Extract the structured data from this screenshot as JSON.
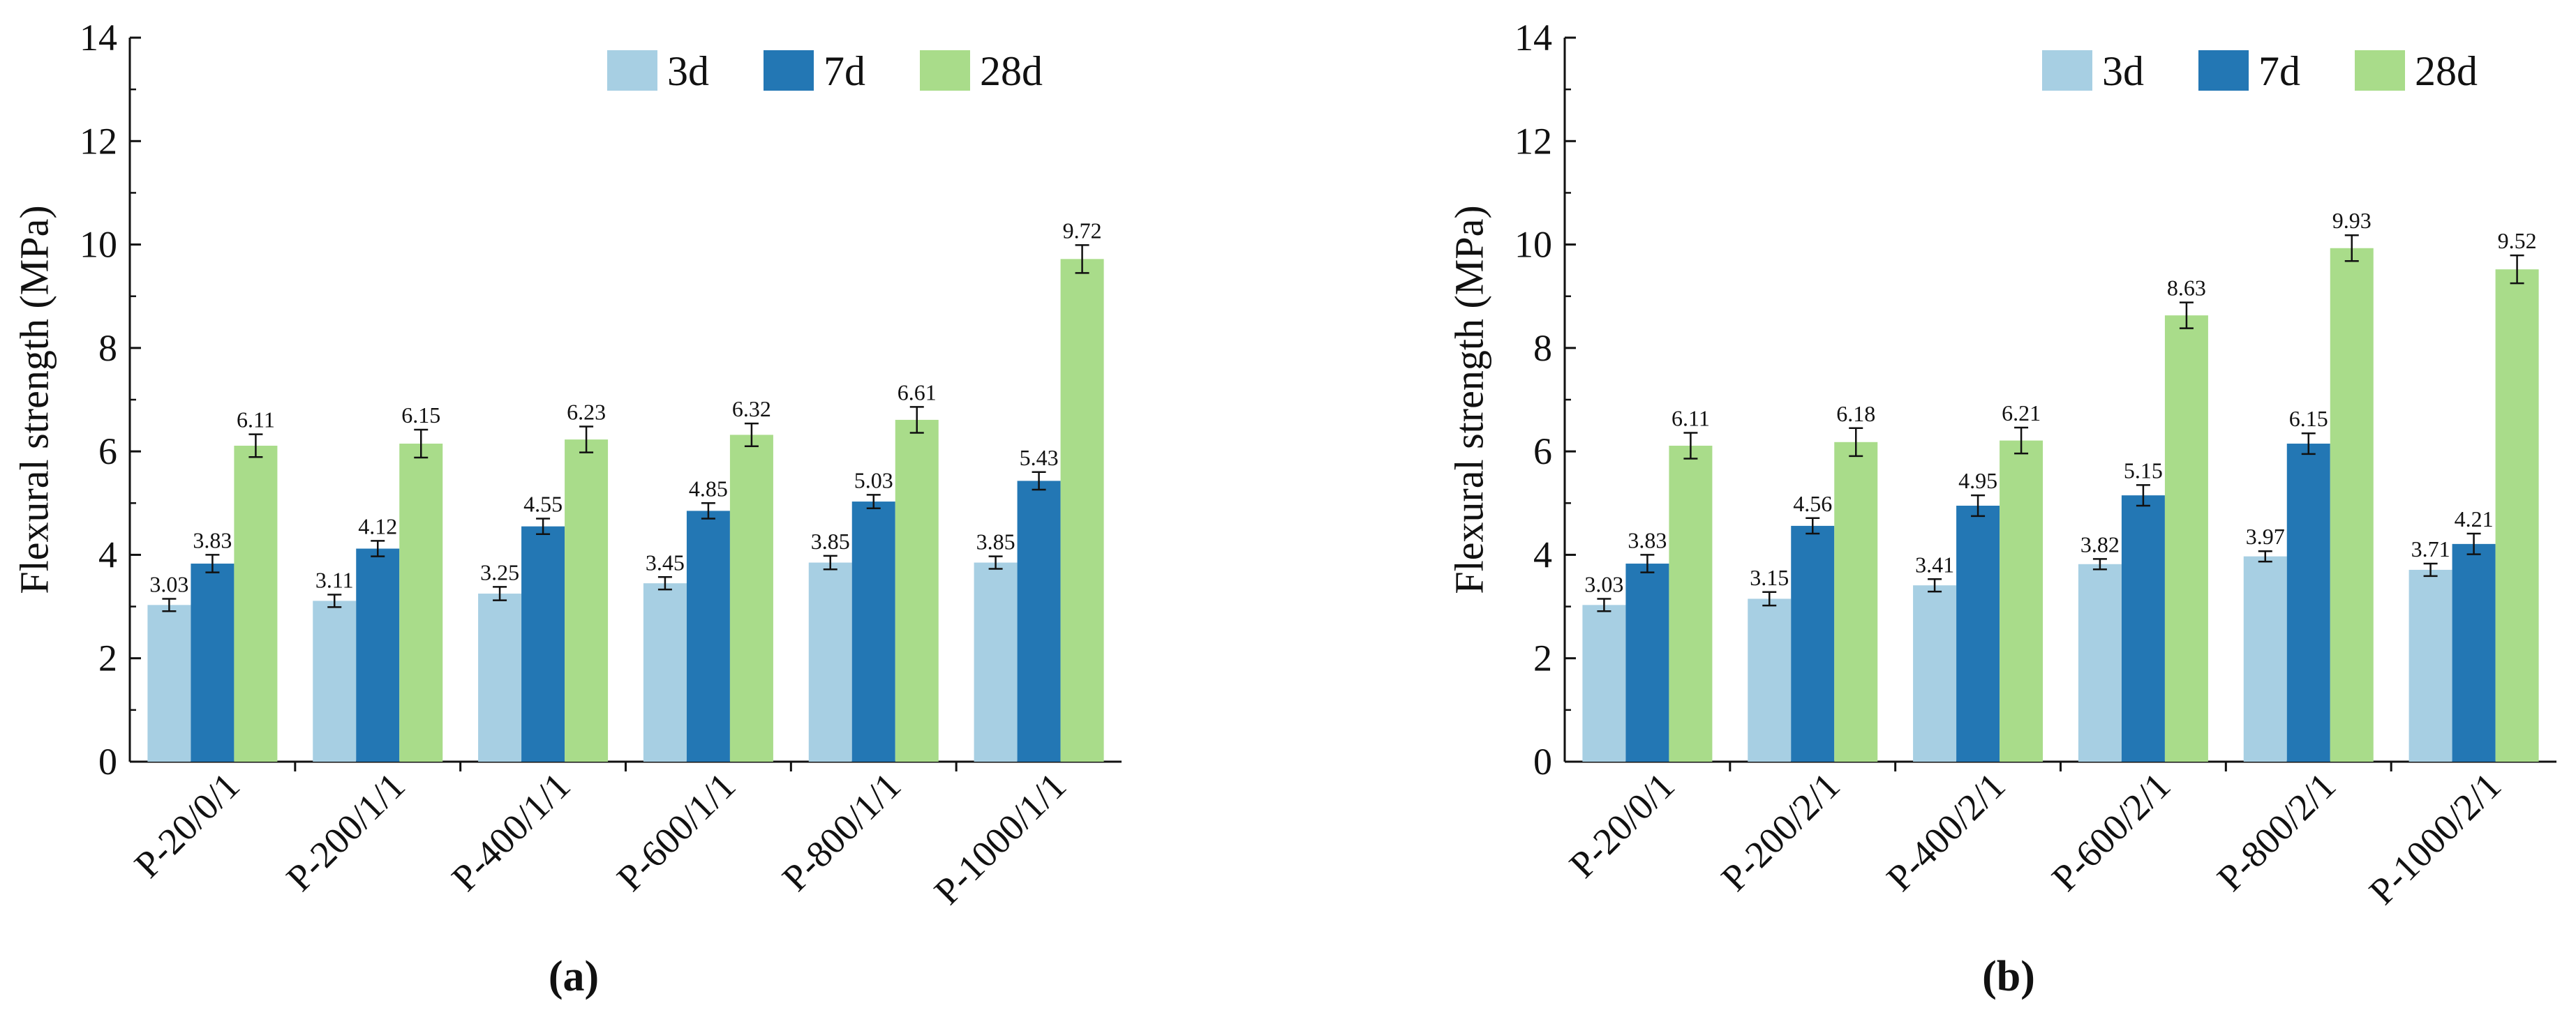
{
  "colors": {
    "3d": "#a7cfe3",
    "7d": "#2377b4",
    "28d": "#a9dc8a",
    "axis": "#111111"
  },
  "chart_data": [
    {
      "type": "bar",
      "panel_label": "(a)",
      "ylabel": "Flexural strength (MPa)",
      "xlabel": "",
      "ylim": [
        0,
        14
      ],
      "yticks": [
        0,
        2,
        4,
        6,
        8,
        10,
        12,
        14
      ],
      "legend": [
        "3d",
        "7d",
        "28d"
      ],
      "legend_position": "top-right",
      "categories": [
        "P-20/0/1",
        "P-200/1/1",
        "P-400/1/1",
        "P-600/1/1",
        "P-800/1/1",
        "P-1000/1/1"
      ],
      "series": [
        {
          "name": "3d",
          "values": [
            3.03,
            3.11,
            3.25,
            3.45,
            3.85,
            3.85
          ],
          "errors": [
            0.12,
            0.12,
            0.13,
            0.12,
            0.13,
            0.12
          ],
          "labels": [
            "3.03",
            "3.11",
            "3.25",
            "3.45",
            "3.85",
            "3.85"
          ]
        },
        {
          "name": "7d",
          "values": [
            3.83,
            4.12,
            4.55,
            4.85,
            5.03,
            5.43
          ],
          "errors": [
            0.17,
            0.15,
            0.15,
            0.15,
            0.13,
            0.17
          ],
          "labels": [
            "3.83",
            "4.12",
            "4.55",
            "4.85",
            "5.03",
            "5.43"
          ]
        },
        {
          "name": "28d",
          "values": [
            6.11,
            6.15,
            6.23,
            6.32,
            6.61,
            9.72
          ],
          "errors": [
            0.22,
            0.27,
            0.25,
            0.22,
            0.25,
            0.27
          ],
          "labels": [
            "6.11",
            "6.15",
            "6.23",
            "6.32",
            "6.61",
            "9.72"
          ]
        }
      ]
    },
    {
      "type": "bar",
      "panel_label": "(b)",
      "ylabel": "Flexural strength (MPa)",
      "xlabel": "",
      "ylim": [
        0,
        14
      ],
      "yticks": [
        0,
        2,
        4,
        6,
        8,
        10,
        12,
        14
      ],
      "legend": [
        "3d",
        "7d",
        "28d"
      ],
      "legend_position": "top-right",
      "categories": [
        "P-20/0/1",
        "P-200/2/1",
        "P-400/2/1",
        "P-600/2/1",
        "P-800/2/1",
        "P-1000/2/1"
      ],
      "series": [
        {
          "name": "3d",
          "values": [
            3.03,
            3.15,
            3.41,
            3.82,
            3.97,
            3.71
          ],
          "errors": [
            0.12,
            0.13,
            0.12,
            0.1,
            0.1,
            0.12
          ],
          "labels": [
            "3.03",
            "3.15",
            "3.41",
            "3.82",
            "3.97",
            "3.71"
          ]
        },
        {
          "name": "7d",
          "values": [
            3.83,
            4.56,
            4.95,
            5.15,
            6.15,
            4.21
          ],
          "errors": [
            0.17,
            0.15,
            0.2,
            0.2,
            0.2,
            0.2
          ],
          "labels": [
            "3.83",
            "4.56",
            "4.95",
            "5.15",
            "6.15",
            "4.21"
          ]
        },
        {
          "name": "28d",
          "values": [
            6.11,
            6.18,
            6.21,
            8.63,
            9.93,
            9.52
          ],
          "errors": [
            0.25,
            0.27,
            0.25,
            0.25,
            0.25,
            0.27
          ],
          "labels": [
            "6.11",
            "6.18",
            "6.21",
            "8.63",
            "9.93",
            "9.52"
          ]
        }
      ]
    }
  ]
}
